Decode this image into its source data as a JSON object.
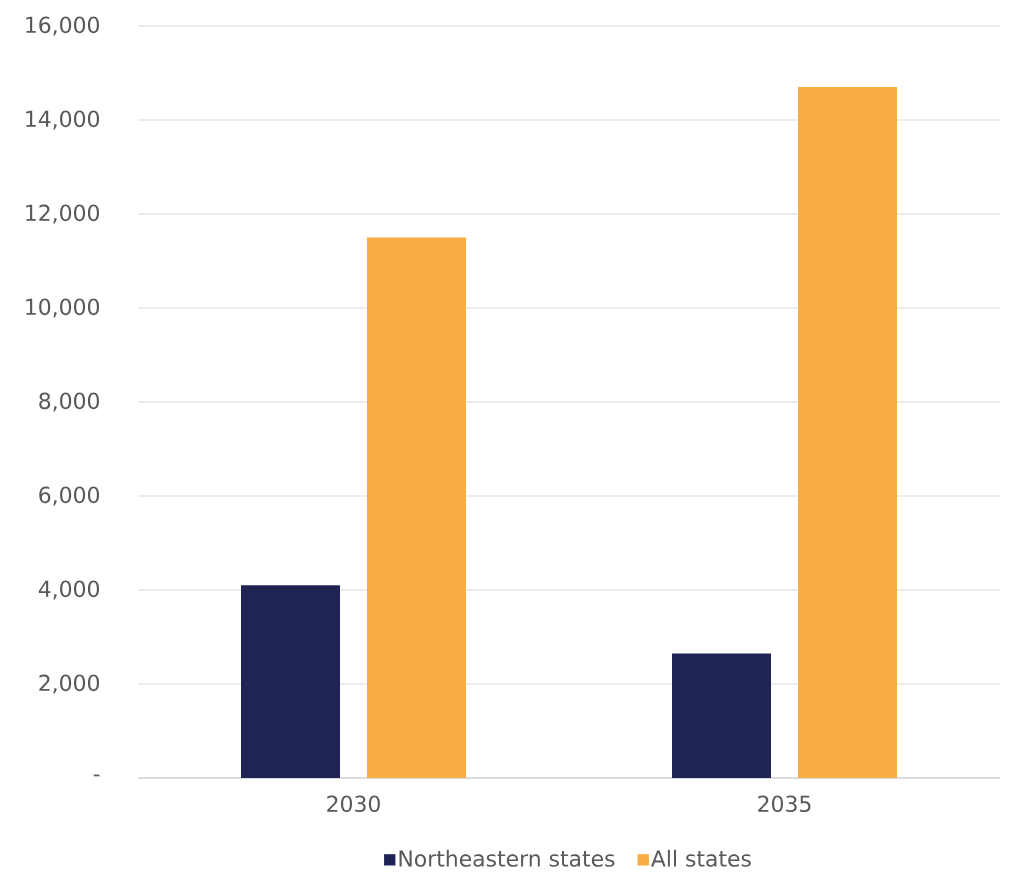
{
  "chart_data": {
    "type": "bar",
    "categories": [
      "2030",
      "2035"
    ],
    "series": [
      {
        "name": "Northeastern states",
        "color": "#1f2454",
        "values": [
          4100,
          2650
        ]
      },
      {
        "name": "All states",
        "color": "#f9ad42",
        "values": [
          11500,
          14700
        ]
      }
    ],
    "ylim": [
      0,
      16000
    ],
    "yticks": [
      {
        "value": 0,
        "label": "-"
      },
      {
        "value": 2000,
        "label": "2,000"
      },
      {
        "value": 4000,
        "label": "4,000"
      },
      {
        "value": 6000,
        "label": "6,000"
      },
      {
        "value": 8000,
        "label": "8,000"
      },
      {
        "value": 10000,
        "label": "10,000"
      },
      {
        "value": 12000,
        "label": "12,000"
      },
      {
        "value": 14000,
        "label": "14,000"
      },
      {
        "value": 16000,
        "label": "16,000"
      }
    ],
    "grid": "y",
    "legend": "bottom"
  }
}
